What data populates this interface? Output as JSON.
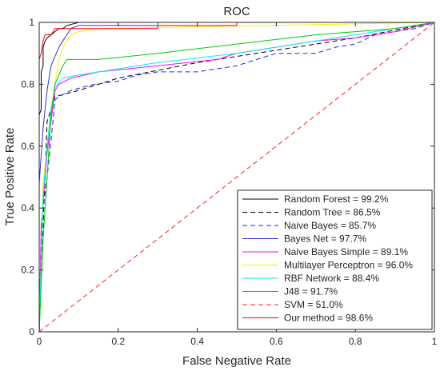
{
  "chart_data": {
    "type": "line",
    "title": "ROC",
    "xlabel": "False Negative Rate",
    "ylabel": "True Positive Rate",
    "xlim": [
      0,
      1
    ],
    "ylim": [
      0,
      1
    ],
    "xticks": [
      0,
      0.2,
      0.4,
      0.6,
      0.8,
      1
    ],
    "yticks": [
      0,
      0.2,
      0.4,
      0.6,
      0.8,
      1
    ],
    "xtick_labels": [
      "0",
      "0.2",
      "0.4",
      "0.6",
      "0.8",
      "1"
    ],
    "ytick_labels": [
      "0",
      "0.2",
      "0.4",
      "0.6",
      "0.8",
      "1"
    ],
    "legend_position": "bottom-right",
    "grid": false,
    "series": [
      {
        "name": "Random Forest = 99.2%",
        "color": "#000000",
        "dash": "solid",
        "points": [
          [
            0,
            0
          ],
          [
            0,
            0.7
          ],
          [
            0.005,
            0.72
          ],
          [
            0.005,
            0.84
          ],
          [
            0.01,
            0.86
          ],
          [
            0.01,
            0.92
          ],
          [
            0.015,
            0.94
          ],
          [
            0.02,
            0.95
          ],
          [
            0.03,
            0.96
          ],
          [
            0.04,
            0.97
          ],
          [
            0.05,
            0.98
          ],
          [
            0.06,
            0.98
          ],
          [
            0.07,
            0.99
          ],
          [
            0.1,
            1
          ],
          [
            1,
            1
          ]
        ]
      },
      {
        "name": "Random Tree = 86.5%",
        "color": "#000000",
        "dash": "dashed",
        "points": [
          [
            0,
            0
          ],
          [
            0.02,
            0.68
          ],
          [
            0.04,
            0.76
          ],
          [
            0.1,
            0.78
          ],
          [
            0.2,
            0.82
          ],
          [
            0.4,
            0.87
          ],
          [
            0.6,
            0.91
          ],
          [
            0.8,
            0.95
          ],
          [
            1,
            1
          ]
        ]
      },
      {
        "name": "Naive Bayes = 85.7%",
        "color": "#2222ee",
        "dash": "dashed",
        "points": [
          [
            0,
            0
          ],
          [
            0.005,
            0.35
          ],
          [
            0.02,
            0.5
          ],
          [
            0.03,
            0.62
          ],
          [
            0.04,
            0.75
          ],
          [
            0.05,
            0.76
          ],
          [
            0.08,
            0.78
          ],
          [
            0.14,
            0.8
          ],
          [
            0.2,
            0.81
          ],
          [
            0.25,
            0.83
          ],
          [
            0.3,
            0.84
          ],
          [
            0.4,
            0.84
          ],
          [
            0.5,
            0.86
          ],
          [
            0.55,
            0.88
          ],
          [
            0.6,
            0.9
          ],
          [
            0.7,
            0.9
          ],
          [
            0.75,
            0.92
          ],
          [
            0.8,
            0.93
          ],
          [
            0.85,
            0.96
          ],
          [
            0.9,
            0.97
          ],
          [
            0.95,
            0.98
          ],
          [
            1,
            1
          ]
        ]
      },
      {
        "name": "Bayes Net = 97.7%",
        "color": "#3030d0",
        "dash": "solid",
        "points": [
          [
            0,
            0
          ],
          [
            0,
            0.48
          ],
          [
            0.01,
            0.66
          ],
          [
            0.02,
            0.78
          ],
          [
            0.03,
            0.86
          ],
          [
            0.04,
            0.89
          ],
          [
            0.05,
            0.92
          ],
          [
            0.06,
            0.94
          ],
          [
            0.07,
            0.96
          ],
          [
            0.08,
            0.98
          ],
          [
            0.1,
            0.99
          ],
          [
            0.3,
            0.99
          ],
          [
            0.3,
            1
          ],
          [
            1,
            1
          ]
        ]
      },
      {
        "name": "Naive Bayes Simple = 89.1%",
        "color": "#ff00ff",
        "dash": "solid",
        "points": [
          [
            0,
            0
          ],
          [
            0.005,
            0.34
          ],
          [
            0.02,
            0.58
          ],
          [
            0.03,
            0.68
          ],
          [
            0.04,
            0.78
          ],
          [
            0.05,
            0.8
          ],
          [
            0.08,
            0.82
          ],
          [
            0.15,
            0.84
          ],
          [
            0.3,
            0.86
          ],
          [
            0.45,
            0.88
          ],
          [
            0.5,
            0.9
          ],
          [
            0.6,
            0.92
          ],
          [
            0.7,
            0.94
          ],
          [
            0.8,
            0.95
          ],
          [
            0.9,
            0.97
          ],
          [
            1,
            1
          ]
        ]
      },
      {
        "name": "Multilayer Perceptron = 96.0%",
        "color": "#ffee00",
        "dash": "solid",
        "points": [
          [
            0,
            0
          ],
          [
            0.01,
            0.48
          ],
          [
            0.02,
            0.6
          ],
          [
            0.03,
            0.72
          ],
          [
            0.04,
            0.8
          ],
          [
            0.05,
            0.88
          ],
          [
            0.06,
            0.92
          ],
          [
            0.08,
            0.96
          ],
          [
            0.1,
            0.97
          ],
          [
            0.15,
            0.98
          ],
          [
            1,
            1
          ]
        ]
      },
      {
        "name": "RBF Network = 88.4%",
        "color": "#00eeee",
        "dash": "solid",
        "points": [
          [
            0,
            0
          ],
          [
            0.01,
            0.44
          ],
          [
            0.02,
            0.6
          ],
          [
            0.03,
            0.72
          ],
          [
            0.04,
            0.79
          ],
          [
            0.06,
            0.82
          ],
          [
            0.1,
            0.83
          ],
          [
            0.2,
            0.85
          ],
          [
            0.3,
            0.87
          ],
          [
            0.5,
            0.9
          ],
          [
            0.7,
            0.94
          ],
          [
            0.85,
            0.97
          ],
          [
            1,
            1
          ]
        ]
      },
      {
        "name": "J48 = 91.7%",
        "color": "#00cc00",
        "dash": "solid",
        "points": [
          [
            0,
            0
          ],
          [
            0.01,
            0.3
          ],
          [
            0.02,
            0.5
          ],
          [
            0.03,
            0.7
          ],
          [
            0.04,
            0.8
          ],
          [
            0.06,
            0.86
          ],
          [
            0.07,
            0.88
          ],
          [
            0.15,
            0.88
          ],
          [
            0.3,
            0.9
          ],
          [
            0.5,
            0.93
          ],
          [
            0.7,
            0.96
          ],
          [
            0.9,
            0.98
          ],
          [
            1,
            1
          ]
        ]
      },
      {
        "name": "SVM = 51.0%",
        "color": "#ff2222",
        "dash": "dashed",
        "points": [
          [
            0,
            0
          ],
          [
            1,
            1
          ]
        ]
      },
      {
        "name": "Our method = 98.6%",
        "color": "#ff0000",
        "dash": "solid",
        "points": [
          [
            0,
            0
          ],
          [
            0,
            0.88
          ],
          [
            0.005,
            0.9
          ],
          [
            0.01,
            0.94
          ],
          [
            0.015,
            0.96
          ],
          [
            0.03,
            0.96
          ],
          [
            0.04,
            0.98
          ],
          [
            0.3,
            0.98
          ],
          [
            0.3,
            0.99
          ],
          [
            0.5,
            0.99
          ],
          [
            0.5,
            1
          ],
          [
            1,
            1
          ]
        ]
      }
    ]
  }
}
